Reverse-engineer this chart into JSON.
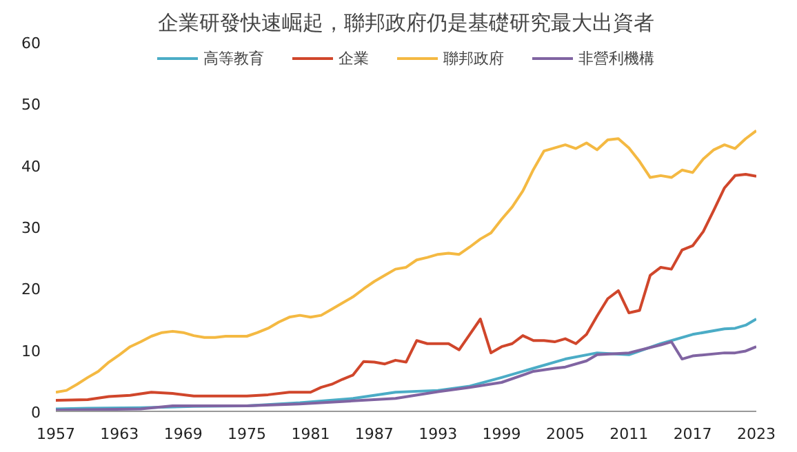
{
  "chart_data": {
    "type": "line",
    "title": "企業研發快速崛起，聯邦政府仍是基礎研究最大出資者",
    "xlim": [
      1957,
      2023
    ],
    "xticks": [
      1957,
      1963,
      1969,
      1975,
      1981,
      1987,
      1993,
      1999,
      2005,
      2011,
      2017,
      2023
    ],
    "ylim": [
      0,
      60
    ],
    "yticks": [
      0,
      10,
      20,
      30,
      40,
      50,
      60
    ],
    "grid": false,
    "legend": "top",
    "marker": "none",
    "line_style": "solid",
    "series": [
      {
        "name": "高等教育",
        "color": "#4bacc6",
        "x": [
          1957,
          1960,
          1965,
          1970,
          1975,
          1980,
          1985,
          1989,
          1993,
          1996,
          1999,
          2002,
          2005,
          2008,
          2011,
          2014,
          2017,
          2020,
          2021,
          2022,
          2023
        ],
        "values": [
          0.4,
          0.5,
          0.6,
          0.8,
          0.9,
          1.4,
          2.1,
          3.1,
          3.4,
          4.1,
          5.5,
          7,
          8.5,
          9.5,
          9.2,
          11,
          12.5,
          13.4,
          13.5,
          14,
          15
        ]
      },
      {
        "name": "企業",
        "color": "#d0462b",
        "x": [
          1957,
          1960,
          1962,
          1964,
          1966,
          1968,
          1970,
          1975,
          1977,
          1979,
          1981,
          1982,
          1983,
          1984,
          1985,
          1986,
          1987,
          1988,
          1989,
          1990,
          1991,
          1992,
          1993,
          1994,
          1995,
          1996,
          1997,
          1998,
          1999,
          2000,
          2001,
          2002,
          2003,
          2004,
          2005,
          2006,
          2007,
          2008,
          2009,
          2010,
          2011,
          2012,
          2013,
          2014,
          2015,
          2016,
          2017,
          2018,
          2019,
          2020,
          2021,
          2022,
          2023
        ],
        "values": [
          1.8,
          1.9,
          2.4,
          2.6,
          3.1,
          2.9,
          2.5,
          2.5,
          2.7,
          3.1,
          3.1,
          3.9,
          4.4,
          5.2,
          5.9,
          8.1,
          8,
          7.7,
          8.3,
          8,
          11.5,
          11,
          11,
          11,
          10,
          12.5,
          15,
          9.5,
          10.5,
          11,
          12.3,
          11.5,
          11.5,
          11.3,
          11.8,
          11,
          12.5,
          15.5,
          18.3,
          19.6,
          16,
          16.4,
          22.1,
          23.4,
          23.1,
          26.2,
          26.9,
          29.2,
          32.7,
          36.3,
          38.3,
          38.5,
          38.2
        ]
      },
      {
        "name": "聯邦政府",
        "color": "#f4b942",
        "x": [
          1957,
          1958,
          1959,
          1960,
          1961,
          1962,
          1963,
          1964,
          1965,
          1966,
          1967,
          1968,
          1969,
          1970,
          1971,
          1972,
          1973,
          1974,
          1975,
          1976,
          1977,
          1978,
          1979,
          1980,
          1981,
          1982,
          1983,
          1984,
          1985,
          1986,
          1987,
          1988,
          1989,
          1990,
          1991,
          1992,
          1993,
          1994,
          1995,
          1996,
          1997,
          1998,
          1999,
          2000,
          2001,
          2002,
          2003,
          2004,
          2005,
          2006,
          2007,
          2008,
          2009,
          2010,
          2011,
          2012,
          2013,
          2014,
          2015,
          2016,
          2017,
          2018,
          2019,
          2020,
          2021,
          2022,
          2023
        ],
        "values": [
          3.1,
          3.4,
          4.4,
          5.5,
          6.5,
          8,
          9.2,
          10.5,
          11.3,
          12.2,
          12.8,
          13,
          12.8,
          12.3,
          12,
          12,
          12.2,
          12.2,
          12.2,
          12.8,
          13.5,
          14.5,
          15.3,
          15.6,
          15.3,
          15.6,
          16.6,
          17.6,
          18.6,
          19.9,
          21.1,
          22.1,
          23.1,
          23.4,
          24.6,
          25,
          25.5,
          25.7,
          25.5,
          26.7,
          28,
          29,
          31.2,
          33.2,
          35.8,
          39.3,
          42.3,
          42.8,
          43.3,
          42.7,
          43.6,
          42.5,
          44.1,
          44.3,
          42.8,
          40.6,
          38,
          38.3,
          38,
          39.2,
          38.8,
          41,
          42.5,
          43.3,
          42.7,
          44.3,
          45.6
        ]
      },
      {
        "name": "非營利機構",
        "color": "#8064a2",
        "x": [
          1957,
          1965,
          1968,
          1975,
          1980,
          1985,
          1989,
          1993,
          1996,
          1999,
          2002,
          2004,
          2005,
          2007,
          2008,
          2011,
          2014,
          2015,
          2016,
          2017,
          2020,
          2021,
          2022,
          2023
        ],
        "values": [
          0.2,
          0.4,
          0.9,
          0.9,
          1.2,
          1.7,
          2.1,
          3.2,
          3.9,
          4.7,
          6.5,
          7,
          7.2,
          8.2,
          9.2,
          9.5,
          10.8,
          11.3,
          8.5,
          9,
          9.5,
          9.5,
          9.8,
          10.5
        ]
      }
    ]
  }
}
